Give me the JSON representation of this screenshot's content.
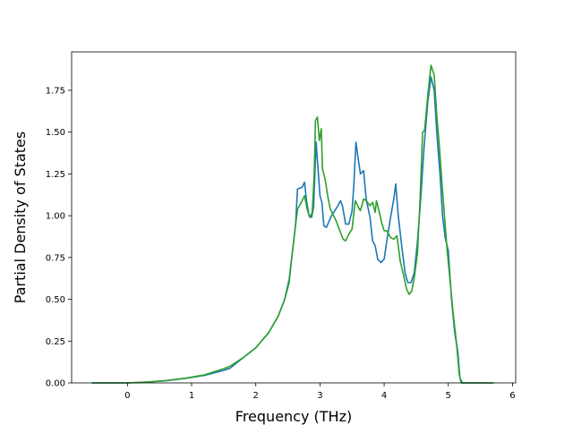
{
  "chart_data": {
    "type": "line",
    "title": "",
    "xlabel": "Frequency (THz)",
    "ylabel": "Partial Density of States",
    "xlim": [
      -0.87,
      6.05
    ],
    "ylim": [
      0,
      1.98
    ],
    "xticks": [
      0,
      1,
      2,
      3,
      4,
      5,
      6
    ],
    "xtick_labels": [
      "0",
      "1",
      "2",
      "3",
      "4",
      "5",
      "6"
    ],
    "yticks": [
      0.0,
      0.25,
      0.5,
      0.75,
      1.0,
      1.25,
      1.5,
      1.75
    ],
    "ytick_labels": [
      "0.00",
      "0.25",
      "0.50",
      "0.75",
      "1.00",
      "1.25",
      "1.50",
      "1.75"
    ],
    "grid": false,
    "legend": "none",
    "series": [
      {
        "color": "#1f77b4",
        "points": [
          [
            -0.55,
            0
          ],
          [
            0,
            0
          ],
          [
            0.3,
            0.005
          ],
          [
            0.6,
            0.013
          ],
          [
            0.9,
            0.027
          ],
          [
            1.2,
            0.045
          ],
          [
            1.5,
            0.075
          ],
          [
            1.6,
            0.088
          ],
          [
            1.8,
            0.15
          ],
          [
            2.0,
            0.21
          ],
          [
            2.2,
            0.3
          ],
          [
            2.35,
            0.4
          ],
          [
            2.45,
            0.5
          ],
          [
            2.52,
            0.62
          ],
          [
            2.57,
            0.78
          ],
          [
            2.62,
            0.95
          ],
          [
            2.65,
            1.16
          ],
          [
            2.72,
            1.17
          ],
          [
            2.76,
            1.2
          ],
          [
            2.79,
            1.09
          ],
          [
            2.83,
            1.0
          ],
          [
            2.87,
            0.99
          ],
          [
            2.9,
            1.05
          ],
          [
            2.94,
            1.44
          ],
          [
            2.97,
            1.28
          ],
          [
            3.0,
            1.12
          ],
          [
            3.03,
            1.08
          ],
          [
            3.06,
            0.94
          ],
          [
            3.1,
            0.93
          ],
          [
            3.18,
            1.0
          ],
          [
            3.28,
            1.06
          ],
          [
            3.32,
            1.09
          ],
          [
            3.35,
            1.06
          ],
          [
            3.4,
            0.95
          ],
          [
            3.45,
            0.95
          ],
          [
            3.5,
            1.03
          ],
          [
            3.53,
            1.2
          ],
          [
            3.56,
            1.44
          ],
          [
            3.6,
            1.33
          ],
          [
            3.63,
            1.25
          ],
          [
            3.68,
            1.27
          ],
          [
            3.72,
            1.1
          ],
          [
            3.78,
            0.99
          ],
          [
            3.82,
            0.85
          ],
          [
            3.86,
            0.82
          ],
          [
            3.9,
            0.74
          ],
          [
            3.95,
            0.72
          ],
          [
            4.0,
            0.74
          ],
          [
            4.05,
            0.87
          ],
          [
            4.1,
            0.99
          ],
          [
            4.15,
            1.1
          ],
          [
            4.18,
            1.19
          ],
          [
            4.22,
            1.0
          ],
          [
            4.28,
            0.8
          ],
          [
            4.33,
            0.65
          ],
          [
            4.37,
            0.6
          ],
          [
            4.42,
            0.6
          ],
          [
            4.47,
            0.66
          ],
          [
            4.52,
            0.85
          ],
          [
            4.57,
            1.1
          ],
          [
            4.62,
            1.4
          ],
          [
            4.68,
            1.68
          ],
          [
            4.73,
            1.83
          ],
          [
            4.78,
            1.75
          ],
          [
            4.82,
            1.5
          ],
          [
            4.87,
            1.25
          ],
          [
            4.91,
            1.0
          ],
          [
            4.95,
            0.87
          ],
          [
            5.0,
            0.79
          ],
          [
            5.05,
            0.5
          ],
          [
            5.1,
            0.3
          ],
          [
            5.15,
            0.18
          ],
          [
            5.18,
            0.03
          ],
          [
            5.22,
            0
          ],
          [
            5.7,
            0
          ]
        ]
      },
      {
        "color": "#2ca02c",
        "points": [
          [
            -0.55,
            0
          ],
          [
            0,
            0
          ],
          [
            0.3,
            0.005
          ],
          [
            0.6,
            0.014
          ],
          [
            0.9,
            0.028
          ],
          [
            1.2,
            0.048
          ],
          [
            1.5,
            0.085
          ],
          [
            1.6,
            0.1
          ],
          [
            1.8,
            0.15
          ],
          [
            2.0,
            0.21
          ],
          [
            2.2,
            0.3
          ],
          [
            2.35,
            0.4
          ],
          [
            2.45,
            0.5
          ],
          [
            2.52,
            0.6
          ],
          [
            2.56,
            0.75
          ],
          [
            2.6,
            0.88
          ],
          [
            2.65,
            1.04
          ],
          [
            2.71,
            1.08
          ],
          [
            2.76,
            1.12
          ],
          [
            2.8,
            1.04
          ],
          [
            2.84,
            0.99
          ],
          [
            2.88,
            1.02
          ],
          [
            2.91,
            1.25
          ],
          [
            2.93,
            1.57
          ],
          [
            2.96,
            1.59
          ],
          [
            2.99,
            1.45
          ],
          [
            3.02,
            1.52
          ],
          [
            3.04,
            1.28
          ],
          [
            3.08,
            1.22
          ],
          [
            3.12,
            1.12
          ],
          [
            3.16,
            1.04
          ],
          [
            3.2,
            1.01
          ],
          [
            3.25,
            0.97
          ],
          [
            3.3,
            0.92
          ],
          [
            3.36,
            0.86
          ],
          [
            3.4,
            0.85
          ],
          [
            3.45,
            0.89
          ],
          [
            3.5,
            0.92
          ],
          [
            3.55,
            1.09
          ],
          [
            3.6,
            1.05
          ],
          [
            3.63,
            1.03
          ],
          [
            3.68,
            1.1
          ],
          [
            3.72,
            1.09
          ],
          [
            3.78,
            1.06
          ],
          [
            3.82,
            1.08
          ],
          [
            3.86,
            1.02
          ],
          [
            3.88,
            1.09
          ],
          [
            3.92,
            1.03
          ],
          [
            3.96,
            0.96
          ],
          [
            4.0,
            0.91
          ],
          [
            4.04,
            0.91
          ],
          [
            4.1,
            0.87
          ],
          [
            4.15,
            0.86
          ],
          [
            4.2,
            0.88
          ],
          [
            4.25,
            0.73
          ],
          [
            4.3,
            0.65
          ],
          [
            4.35,
            0.56
          ],
          [
            4.39,
            0.53
          ],
          [
            4.43,
            0.55
          ],
          [
            4.47,
            0.63
          ],
          [
            4.52,
            0.78
          ],
          [
            4.56,
            1.1
          ],
          [
            4.6,
            1.5
          ],
          [
            4.63,
            1.51
          ],
          [
            4.68,
            1.72
          ],
          [
            4.73,
            1.9
          ],
          [
            4.78,
            1.84
          ],
          [
            4.82,
            1.6
          ],
          [
            4.86,
            1.42
          ],
          [
            4.9,
            1.2
          ],
          [
            4.94,
            1.0
          ],
          [
            4.98,
            0.8
          ],
          [
            5.03,
            0.6
          ],
          [
            5.08,
            0.4
          ],
          [
            5.13,
            0.23
          ],
          [
            5.17,
            0.05
          ],
          [
            5.2,
            0
          ],
          [
            5.7,
            0
          ]
        ]
      }
    ]
  }
}
